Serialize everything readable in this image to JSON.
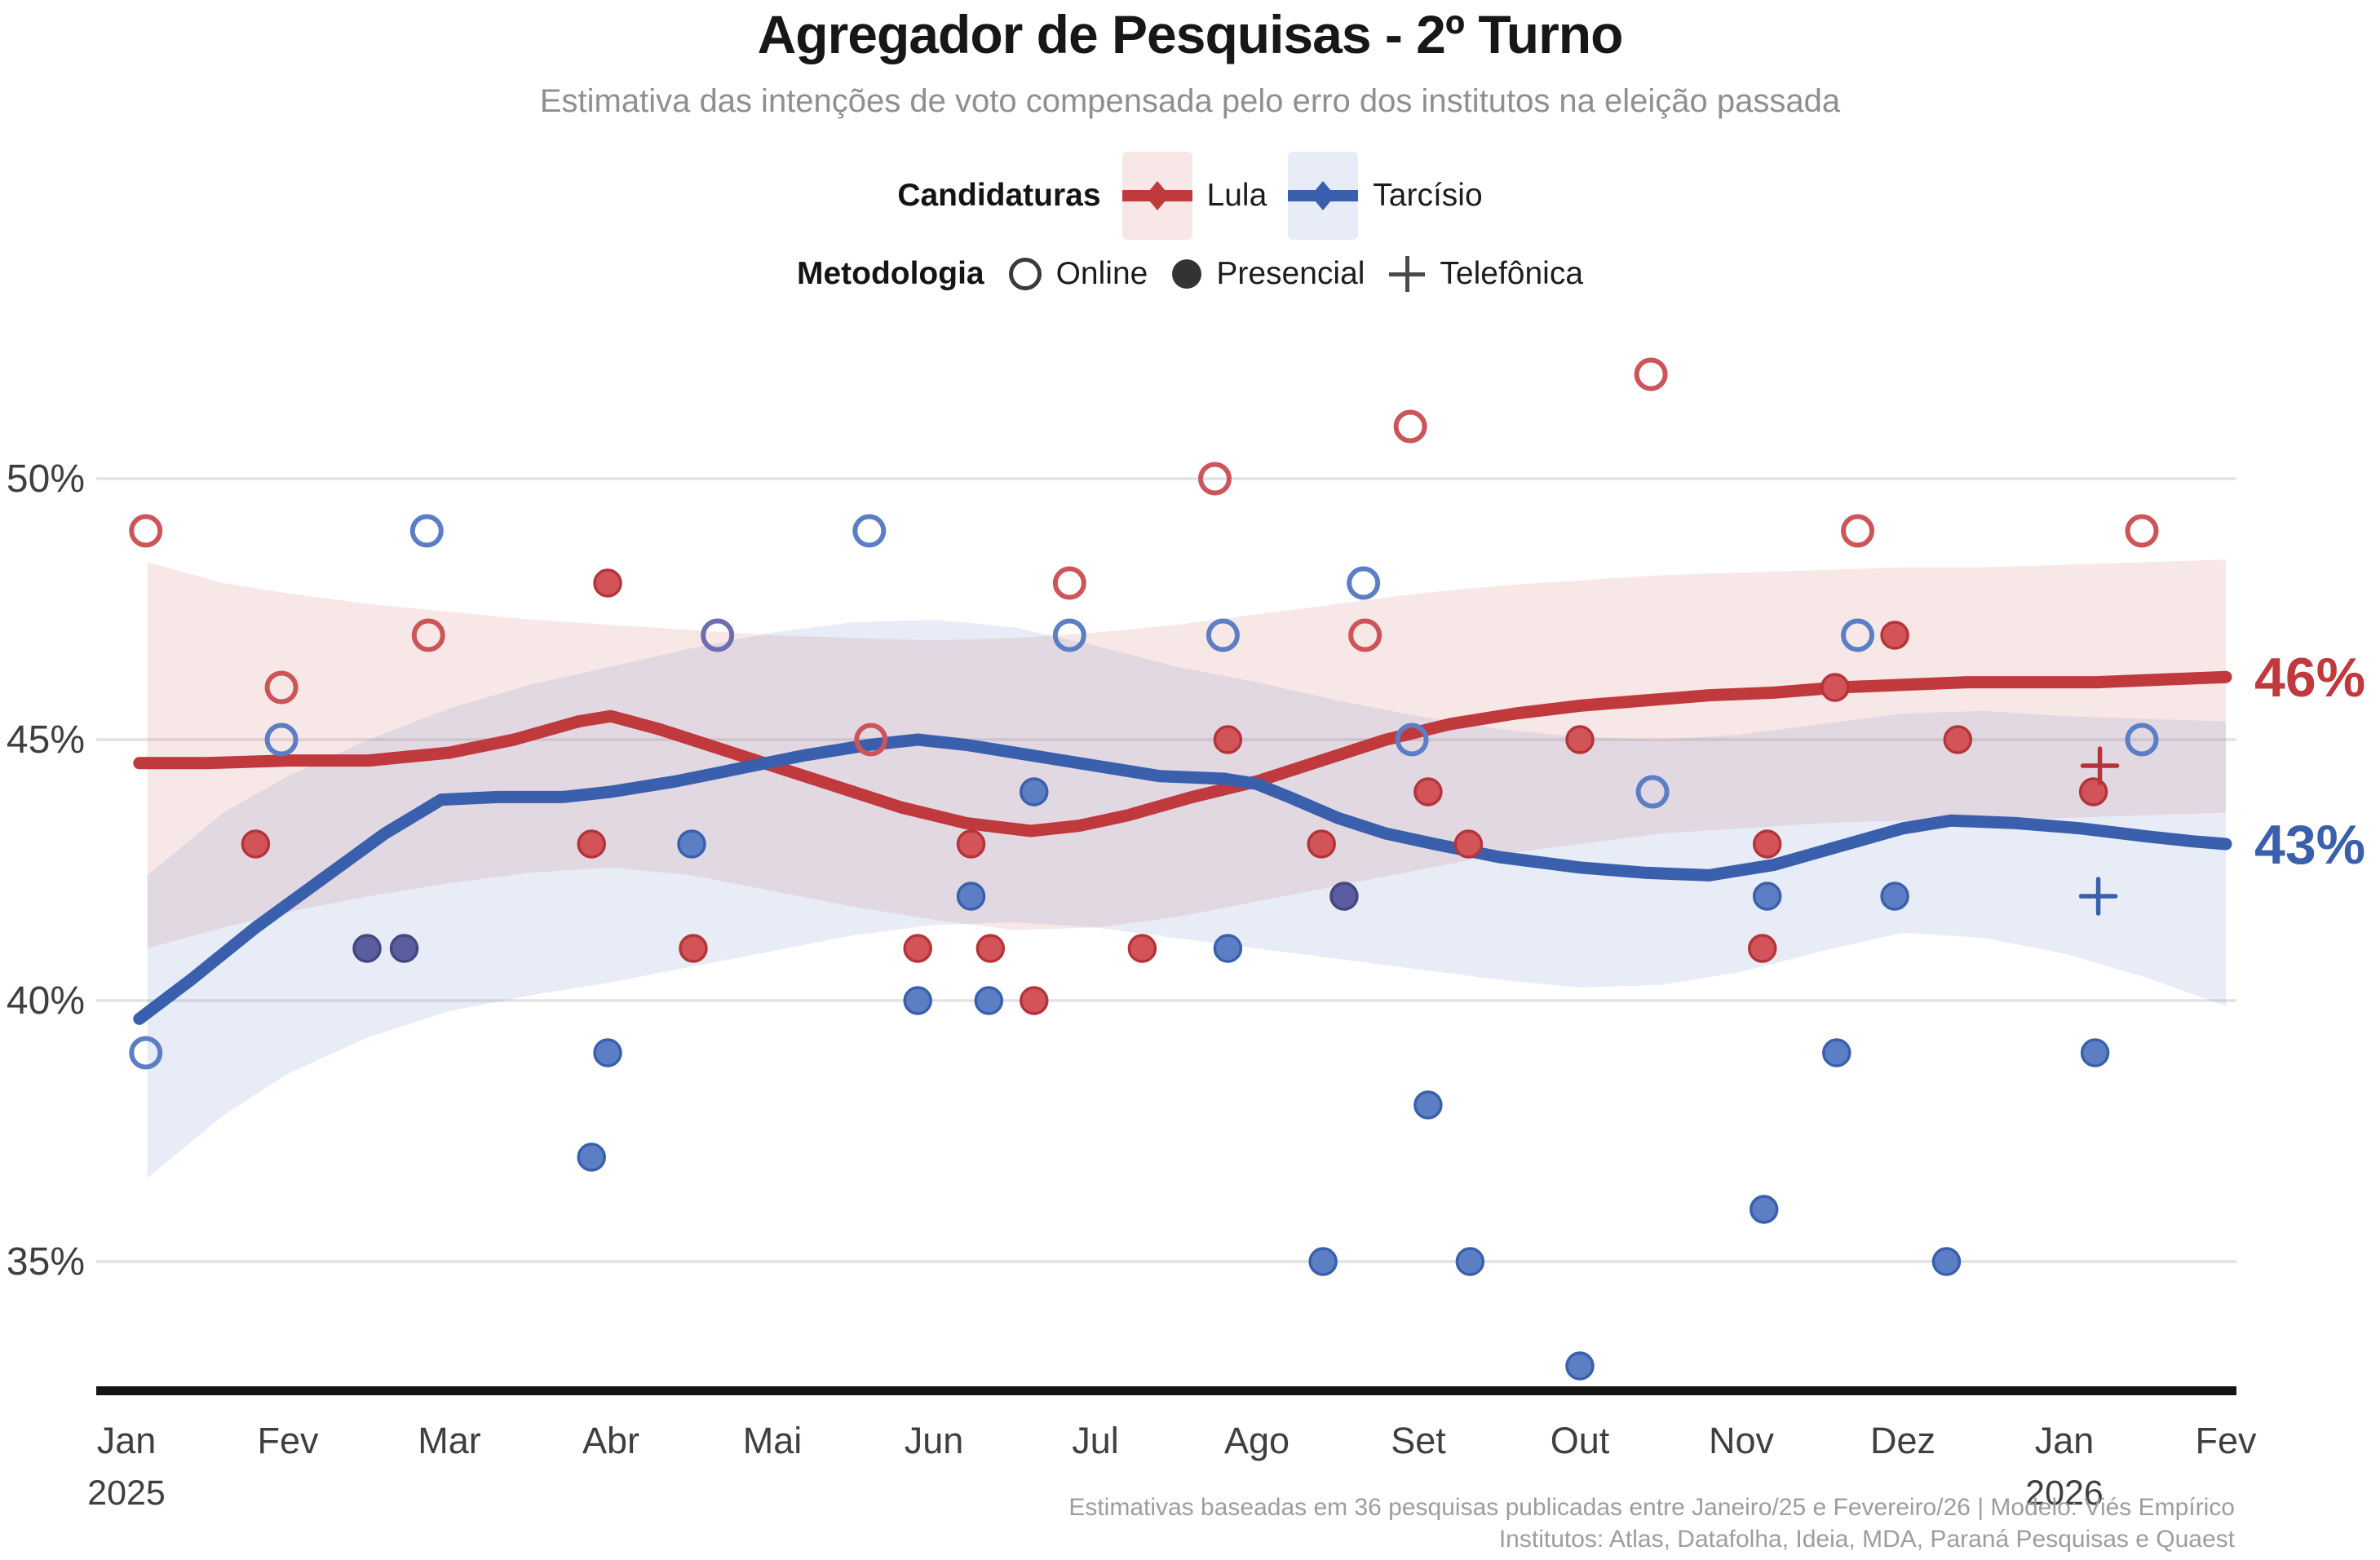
{
  "title": "Agregador de Pesquisas - 2º Turno",
  "subtitle": "Estimativa das intenções de voto compensada pelo erro dos institutos na eleição passada",
  "legend": {
    "candidaturas_label": "Candidaturas",
    "metodologia_label": "Metodologia",
    "candidates": [
      {
        "label": "Lula"
      },
      {
        "label": "Tarcísio"
      }
    ],
    "methods": [
      {
        "label": "Online",
        "marker": "open-circle"
      },
      {
        "label": "Presencial",
        "marker": "filled-circle"
      },
      {
        "label": "Telefônica",
        "marker": "plus"
      }
    ]
  },
  "footer": {
    "line1": "Estimativas baseadas em 36 pesquisas publicadas entre Janeiro/25 e Fevereiro/26 | Modelo: Viés Empírico",
    "line2": "Institutos: Atlas, Datafolha, Ideia, MDA, Paraná Pesquisas e Quaest"
  },
  "chart_data": {
    "type": "line",
    "title": "Agregador de Pesquisas - 2º Turno",
    "x_axis": {
      "tick_labels": [
        "Jan",
        "Fev",
        "Mar",
        "Abr",
        "Mai",
        "Jun",
        "Jul",
        "Ago",
        "Set",
        "Out",
        "Nov",
        "Dez",
        "Jan",
        "Fev"
      ],
      "year_labels": [
        {
          "tick_index": 0,
          "label": "2025"
        },
        {
          "tick_index": 12,
          "label": "2026"
        }
      ]
    },
    "y_axis": {
      "ticks": [
        {
          "value": 50,
          "label": "50%"
        },
        {
          "value": 45,
          "label": "45%"
        },
        {
          "value": 40,
          "label": "40%"
        },
        {
          "value": 35,
          "label": "35%"
        }
      ],
      "range": [
        32.5,
        52.5
      ],
      "unit": "%"
    },
    "grid": true,
    "legend_position": "top",
    "series": [
      {
        "name": "Lula",
        "line_color": "#c0393d",
        "marker_fill": "#d25459",
        "marker_stroke": "#b5343a",
        "open_stroke": "#cd555a",
        "band_color": "rgba(214,104,108,0.16)",
        "end_label": "46%",
        "end_value": 46.2,
        "trend": [
          [
            0.08,
            44.55
          ],
          [
            0.5,
            44.55
          ],
          [
            1,
            44.6
          ],
          [
            1.5,
            44.6
          ],
          [
            2,
            44.75
          ],
          [
            2.4,
            45.0
          ],
          [
            2.8,
            45.35
          ],
          [
            3.0,
            45.45
          ],
          [
            3.3,
            45.2
          ],
          [
            3.6,
            44.9
          ],
          [
            4,
            44.5
          ],
          [
            4.4,
            44.1
          ],
          [
            4.8,
            43.7
          ],
          [
            5.2,
            43.4
          ],
          [
            5.6,
            43.25
          ],
          [
            5.9,
            43.35
          ],
          [
            6.2,
            43.55
          ],
          [
            6.6,
            43.9
          ],
          [
            7.0,
            44.2
          ],
          [
            7.4,
            44.6
          ],
          [
            7.8,
            45.0
          ],
          [
            8.2,
            45.3
          ],
          [
            8.6,
            45.5
          ],
          [
            9.0,
            45.65
          ],
          [
            9.4,
            45.75
          ],
          [
            9.8,
            45.85
          ],
          [
            10.2,
            45.9
          ],
          [
            10.6,
            46.0
          ],
          [
            11.0,
            46.05
          ],
          [
            11.4,
            46.1
          ],
          [
            11.8,
            46.1
          ],
          [
            12.2,
            46.1
          ],
          [
            12.6,
            46.15
          ],
          [
            13.0,
            46.2
          ]
        ],
        "band_upper": [
          [
            0.13,
            48.4
          ],
          [
            0.6,
            48.0
          ],
          [
            1,
            47.8
          ],
          [
            1.5,
            47.6
          ],
          [
            2,
            47.45
          ],
          [
            2.5,
            47.3
          ],
          [
            3,
            47.2
          ],
          [
            3.5,
            47.1
          ],
          [
            4,
            47.0
          ],
          [
            4.5,
            46.95
          ],
          [
            5,
            46.9
          ],
          [
            5.5,
            46.95
          ],
          [
            6,
            47.05
          ],
          [
            6.5,
            47.2
          ],
          [
            7,
            47.4
          ],
          [
            7.5,
            47.6
          ],
          [
            8,
            47.8
          ],
          [
            8.5,
            47.95
          ],
          [
            9,
            48.05
          ],
          [
            9.5,
            48.15
          ],
          [
            10,
            48.2
          ],
          [
            10.5,
            48.25
          ],
          [
            11,
            48.3
          ],
          [
            11.5,
            48.3
          ],
          [
            12,
            48.35
          ],
          [
            12.5,
            48.4
          ],
          [
            13,
            48.45
          ]
        ],
        "band_lower": [
          [
            0.13,
            41.0
          ],
          [
            0.6,
            41.4
          ],
          [
            1,
            41.7
          ],
          [
            1.5,
            42.0
          ],
          [
            2,
            42.25
          ],
          [
            2.5,
            42.45
          ],
          [
            3,
            42.55
          ],
          [
            3.5,
            42.4
          ],
          [
            4,
            42.1
          ],
          [
            4.5,
            41.8
          ],
          [
            5,
            41.55
          ],
          [
            5.5,
            41.35
          ],
          [
            6,
            41.4
          ],
          [
            6.5,
            41.6
          ],
          [
            7,
            41.9
          ],
          [
            7.5,
            42.2
          ],
          [
            8,
            42.5
          ],
          [
            8.5,
            42.8
          ],
          [
            9,
            43.0
          ],
          [
            9.5,
            43.2
          ],
          [
            10,
            43.3
          ],
          [
            10.5,
            43.4
          ],
          [
            11,
            43.45
          ],
          [
            11.5,
            43.45
          ],
          [
            12,
            43.5
          ],
          [
            12.5,
            43.55
          ],
          [
            13,
            43.6
          ]
        ]
      },
      {
        "name": "Tarcísio",
        "line_color": "#3a60ad",
        "marker_fill": "#5b7ec5",
        "marker_stroke": "#3a60ad",
        "open_stroke": "#5b7ec5",
        "band_color": "rgba(122,152,204,0.18)",
        "end_label": "43%",
        "end_value": 43.0,
        "trend": [
          [
            0.08,
            39.65
          ],
          [
            0.4,
            40.4
          ],
          [
            0.8,
            41.4
          ],
          [
            1.2,
            42.3
          ],
          [
            1.6,
            43.2
          ],
          [
            1.95,
            43.85
          ],
          [
            2.3,
            43.9
          ],
          [
            2.7,
            43.9
          ],
          [
            3.0,
            44.0
          ],
          [
            3.4,
            44.2
          ],
          [
            3.8,
            44.45
          ],
          [
            4.2,
            44.7
          ],
          [
            4.6,
            44.9
          ],
          [
            4.9,
            45.0
          ],
          [
            5.2,
            44.9
          ],
          [
            5.6,
            44.7
          ],
          [
            6.0,
            44.5
          ],
          [
            6.4,
            44.3
          ],
          [
            6.8,
            44.25
          ],
          [
            7.0,
            44.15
          ],
          [
            7.2,
            43.9
          ],
          [
            7.5,
            43.5
          ],
          [
            7.8,
            43.2
          ],
          [
            8.1,
            43.0
          ],
          [
            8.5,
            42.75
          ],
          [
            9.0,
            42.55
          ],
          [
            9.4,
            42.45
          ],
          [
            9.8,
            42.4
          ],
          [
            10.2,
            42.6
          ],
          [
            10.6,
            42.95
          ],
          [
            11.0,
            43.3
          ],
          [
            11.3,
            43.45
          ],
          [
            11.7,
            43.4
          ],
          [
            12.1,
            43.3
          ],
          [
            12.5,
            43.15
          ],
          [
            12.8,
            43.05
          ],
          [
            13.0,
            43.0
          ]
        ],
        "band_upper": [
          [
            0.13,
            42.4
          ],
          [
            0.6,
            43.6
          ],
          [
            1,
            44.3
          ],
          [
            1.5,
            45.0
          ],
          [
            2,
            45.6
          ],
          [
            2.5,
            46.05
          ],
          [
            3,
            46.4
          ],
          [
            3.5,
            46.75
          ],
          [
            4,
            47.05
          ],
          [
            4.5,
            47.25
          ],
          [
            5,
            47.3
          ],
          [
            5.5,
            47.15
          ],
          [
            6,
            46.8
          ],
          [
            6.5,
            46.4
          ],
          [
            7,
            46.1
          ],
          [
            7.5,
            45.75
          ],
          [
            8,
            45.45
          ],
          [
            8.5,
            45.2
          ],
          [
            9,
            45.05
          ],
          [
            9.5,
            45.0
          ],
          [
            10,
            45.1
          ],
          [
            10.5,
            45.3
          ],
          [
            11,
            45.5
          ],
          [
            11.5,
            45.55
          ],
          [
            12,
            45.45
          ],
          [
            12.5,
            45.4
          ],
          [
            13,
            45.35
          ]
        ],
        "band_lower": [
          [
            0.13,
            36.6
          ],
          [
            0.6,
            37.8
          ],
          [
            1,
            38.6
          ],
          [
            1.5,
            39.3
          ],
          [
            2,
            39.8
          ],
          [
            2.5,
            40.1
          ],
          [
            3,
            40.35
          ],
          [
            3.5,
            40.65
          ],
          [
            4,
            40.95
          ],
          [
            4.5,
            41.25
          ],
          [
            5,
            41.45
          ],
          [
            5.5,
            41.5
          ],
          [
            6,
            41.4
          ],
          [
            6.5,
            41.2
          ],
          [
            7,
            41.0
          ],
          [
            7.5,
            40.8
          ],
          [
            8,
            40.6
          ],
          [
            8.5,
            40.4
          ],
          [
            9,
            40.25
          ],
          [
            9.5,
            40.3
          ],
          [
            10,
            40.55
          ],
          [
            10.5,
            40.95
          ],
          [
            11,
            41.3
          ],
          [
            11.5,
            41.2
          ],
          [
            12,
            40.9
          ],
          [
            12.5,
            40.45
          ],
          [
            13,
            39.9
          ]
        ]
      }
    ],
    "overlap_style": {
      "name": "empate",
      "marker_fill": "#5a5d9f",
      "marker_stroke": "#45477f",
      "open_stroke": "#6c6fae"
    },
    "polls": [
      {
        "t": 0.12,
        "c": "Lula",
        "m": "online",
        "v": 49
      },
      {
        "t": 0.12,
        "c": "Tarcísio",
        "m": "online",
        "v": 39
      },
      {
        "t": 0.8,
        "c": "Lula",
        "m": "presencial",
        "v": 43
      },
      {
        "t": 0.96,
        "c": "Lula",
        "m": "online",
        "v": 46
      },
      {
        "t": 0.96,
        "c": "Tarcísio",
        "m": "online",
        "v": 45
      },
      {
        "t": 1.49,
        "c": "empate",
        "m": "presencial",
        "v": 41
      },
      {
        "t": 1.72,
        "c": "empate",
        "m": "presencial",
        "v": 41
      },
      {
        "t": 1.86,
        "c": "Tarcísio",
        "m": "online",
        "v": 49
      },
      {
        "t": 1.87,
        "c": "Lula",
        "m": "online",
        "v": 47
      },
      {
        "t": 2.88,
        "c": "Lula",
        "m": "presencial",
        "v": 43
      },
      {
        "t": 2.88,
        "c": "Tarcísio",
        "m": "presencial",
        "v": 37
      },
      {
        "t": 2.98,
        "c": "Lula",
        "m": "presencial",
        "v": 48
      },
      {
        "t": 2.98,
        "c": "Tarcísio",
        "m": "presencial",
        "v": 39
      },
      {
        "t": 3.5,
        "c": "Tarcísio",
        "m": "presencial",
        "v": 43
      },
      {
        "t": 3.51,
        "c": "Lula",
        "m": "presencial",
        "v": 41
      },
      {
        "t": 3.66,
        "c": "empate",
        "m": "online",
        "v": 47
      },
      {
        "t": 4.6,
        "c": "Tarcísio",
        "m": "online",
        "v": 49
      },
      {
        "t": 4.61,
        "c": "Lula",
        "m": "online",
        "v": 45
      },
      {
        "t": 4.9,
        "c": "Lula",
        "m": "presencial",
        "v": 41
      },
      {
        "t": 4.9,
        "c": "Tarcísio",
        "m": "presencial",
        "v": 40
      },
      {
        "t": 5.23,
        "c": "Lula",
        "m": "presencial",
        "v": 43
      },
      {
        "t": 5.23,
        "c": "Tarcísio",
        "m": "presencial",
        "v": 42
      },
      {
        "t": 5.34,
        "c": "Tarcísio",
        "m": "presencial",
        "v": 40
      },
      {
        "t": 5.35,
        "c": "Lula",
        "m": "presencial",
        "v": 41
      },
      {
        "t": 5.62,
        "c": "Lula",
        "m": "presencial",
        "v": 40
      },
      {
        "t": 5.62,
        "c": "Tarcísio",
        "m": "presencial",
        "v": 44
      },
      {
        "t": 5.84,
        "c": "Lula",
        "m": "online",
        "v": 48
      },
      {
        "t": 5.84,
        "c": "Tarcísio",
        "m": "online",
        "v": 47
      },
      {
        "t": 6.29,
        "c": "Lula",
        "m": "presencial",
        "v": 41
      },
      {
        "t": 6.74,
        "c": "Lula",
        "m": "online",
        "v": 50
      },
      {
        "t": 6.79,
        "c": "Tarcísio",
        "m": "online",
        "v": 47
      },
      {
        "t": 6.82,
        "c": "Lula",
        "m": "presencial",
        "v": 45
      },
      {
        "t": 6.82,
        "c": "Tarcísio",
        "m": "presencial",
        "v": 41
      },
      {
        "t": 7.4,
        "c": "Lula",
        "m": "presencial",
        "v": 43
      },
      {
        "t": 7.41,
        "c": "Tarcísio",
        "m": "presencial",
        "v": 35
      },
      {
        "t": 7.54,
        "c": "empate",
        "m": "presencial",
        "v": 42
      },
      {
        "t": 7.66,
        "c": "Tarcísio",
        "m": "online",
        "v": 48
      },
      {
        "t": 7.67,
        "c": "Lula",
        "m": "online",
        "v": 47
      },
      {
        "t": 7.95,
        "c": "Lula",
        "m": "online",
        "v": 51
      },
      {
        "t": 7.96,
        "c": "Tarcísio",
        "m": "online",
        "v": 45
      },
      {
        "t": 8.06,
        "c": "Lula",
        "m": "presencial",
        "v": 44
      },
      {
        "t": 8.06,
        "c": "Tarcísio",
        "m": "presencial",
        "v": 38
      },
      {
        "t": 8.31,
        "c": "Lula",
        "m": "presencial",
        "v": 43
      },
      {
        "t": 8.32,
        "c": "Tarcísio",
        "m": "presencial",
        "v": 35
      },
      {
        "t": 9.0,
        "c": "Lula",
        "m": "presencial",
        "v": 45
      },
      {
        "t": 9.0,
        "c": "Tarcísio",
        "m": "presencial",
        "v": 33
      },
      {
        "t": 9.44,
        "c": "Lula",
        "m": "online",
        "v": 52
      },
      {
        "t": 9.45,
        "c": "Tarcísio",
        "m": "online",
        "v": 44
      },
      {
        "t": 10.13,
        "c": "Lula",
        "m": "presencial",
        "v": 41
      },
      {
        "t": 10.14,
        "c": "Tarcísio",
        "m": "presencial",
        "v": 36
      },
      {
        "t": 10.16,
        "c": "Lula",
        "m": "presencial",
        "v": 43
      },
      {
        "t": 10.16,
        "c": "Tarcísio",
        "m": "presencial",
        "v": 42
      },
      {
        "t": 10.58,
        "c": "Lula",
        "m": "presencial",
        "v": 46
      },
      {
        "t": 10.59,
        "c": "Tarcísio",
        "m": "presencial",
        "v": 39
      },
      {
        "t": 10.72,
        "c": "Lula",
        "m": "online",
        "v": 49
      },
      {
        "t": 10.72,
        "c": "Tarcísio",
        "m": "online",
        "v": 47
      },
      {
        "t": 10.95,
        "c": "Lula",
        "m": "presencial",
        "v": 47
      },
      {
        "t": 10.95,
        "c": "Tarcísio",
        "m": "presencial",
        "v": 42
      },
      {
        "t": 11.27,
        "c": "Tarcísio",
        "m": "presencial",
        "v": 35
      },
      {
        "t": 11.34,
        "c": "Lula",
        "m": "presencial",
        "v": 45
      },
      {
        "t": 12.18,
        "c": "Lula",
        "m": "presencial",
        "v": 44
      },
      {
        "t": 12.19,
        "c": "Tarcísio",
        "m": "presencial",
        "v": 39
      },
      {
        "t": 12.21,
        "c": "Tarcísio",
        "m": "telefônica",
        "v": 42
      },
      {
        "t": 12.22,
        "c": "Lula",
        "m": "telefônica",
        "v": 44.5
      },
      {
        "t": 12.48,
        "c": "Lula",
        "m": "online",
        "v": 49
      },
      {
        "t": 12.48,
        "c": "Tarcísio",
        "m": "online",
        "v": 45
      }
    ]
  }
}
